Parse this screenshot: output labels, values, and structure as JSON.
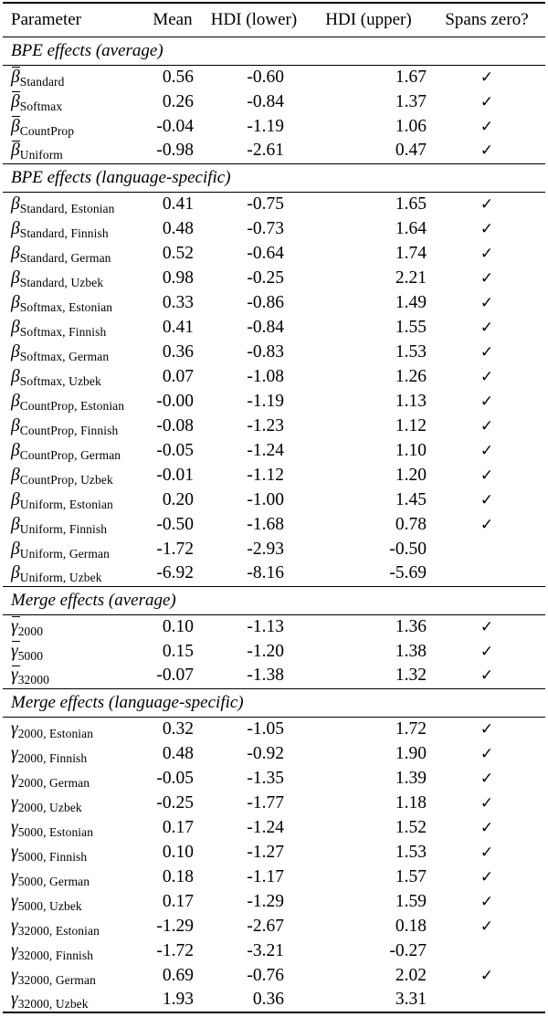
{
  "table": {
    "columns": [
      {
        "label": "Parameter"
      },
      {
        "label": "Mean"
      },
      {
        "label": "HDI (lower)"
      },
      {
        "label": "HDI (upper)"
      },
      {
        "label": "Spans zero?"
      }
    ],
    "check_symbol": "✓",
    "sections": [
      {
        "title": "BPE effects (average)",
        "rows": [
          {
            "param": {
              "sym": "β",
              "bar": true,
              "sub": "Standard"
            },
            "mean": "0.56",
            "hdi_lower": "-0.60",
            "hdi_upper": "1.67",
            "spans_zero": true
          },
          {
            "param": {
              "sym": "β",
              "bar": true,
              "sub": "Softmax"
            },
            "mean": "0.26",
            "hdi_lower": "-0.84",
            "hdi_upper": "1.37",
            "spans_zero": true
          },
          {
            "param": {
              "sym": "β",
              "bar": true,
              "sub": "CountProp"
            },
            "mean": "-0.04",
            "hdi_lower": "-1.19",
            "hdi_upper": "1.06",
            "spans_zero": true
          },
          {
            "param": {
              "sym": "β",
              "bar": true,
              "sub": "Uniform"
            },
            "mean": "-0.98",
            "hdi_lower": "-2.61",
            "hdi_upper": "0.47",
            "spans_zero": true
          }
        ]
      },
      {
        "title": "BPE effects (language-specific)",
        "rows": [
          {
            "param": {
              "sym": "β",
              "bar": false,
              "sub": "Standard, Estonian"
            },
            "mean": "0.41",
            "hdi_lower": "-0.75",
            "hdi_upper": "1.65",
            "spans_zero": true
          },
          {
            "param": {
              "sym": "β",
              "bar": false,
              "sub": "Standard, Finnish"
            },
            "mean": "0.48",
            "hdi_lower": "-0.73",
            "hdi_upper": "1.64",
            "spans_zero": true
          },
          {
            "param": {
              "sym": "β",
              "bar": false,
              "sub": "Standard, German"
            },
            "mean": "0.52",
            "hdi_lower": "-0.64",
            "hdi_upper": "1.74",
            "spans_zero": true
          },
          {
            "param": {
              "sym": "β",
              "bar": false,
              "sub": "Standard, Uzbek"
            },
            "mean": "0.98",
            "hdi_lower": "-0.25",
            "hdi_upper": "2.21",
            "spans_zero": true
          },
          {
            "param": {
              "sym": "β",
              "bar": false,
              "sub": "Softmax, Estonian"
            },
            "mean": "0.33",
            "hdi_lower": "-0.86",
            "hdi_upper": "1.49",
            "spans_zero": true
          },
          {
            "param": {
              "sym": "β",
              "bar": false,
              "sub": "Softmax, Finnish"
            },
            "mean": "0.41",
            "hdi_lower": "-0.84",
            "hdi_upper": "1.55",
            "spans_zero": true
          },
          {
            "param": {
              "sym": "β",
              "bar": false,
              "sub": "Softmax, German"
            },
            "mean": "0.36",
            "hdi_lower": "-0.83",
            "hdi_upper": "1.53",
            "spans_zero": true
          },
          {
            "param": {
              "sym": "β",
              "bar": false,
              "sub": "Softmax, Uzbek"
            },
            "mean": "0.07",
            "hdi_lower": "-1.08",
            "hdi_upper": "1.26",
            "spans_zero": true
          },
          {
            "param": {
              "sym": "β",
              "bar": false,
              "sub": "CountProp, Estonian"
            },
            "mean": "-0.00",
            "hdi_lower": "-1.19",
            "hdi_upper": "1.13",
            "spans_zero": true
          },
          {
            "param": {
              "sym": "β",
              "bar": false,
              "sub": "CountProp, Finnish"
            },
            "mean": "-0.08",
            "hdi_lower": "-1.23",
            "hdi_upper": "1.12",
            "spans_zero": true
          },
          {
            "param": {
              "sym": "β",
              "bar": false,
              "sub": "CountProp, German"
            },
            "mean": "-0.05",
            "hdi_lower": "-1.24",
            "hdi_upper": "1.10",
            "spans_zero": true
          },
          {
            "param": {
              "sym": "β",
              "bar": false,
              "sub": "CountProp, Uzbek"
            },
            "mean": "-0.01",
            "hdi_lower": "-1.12",
            "hdi_upper": "1.20",
            "spans_zero": true
          },
          {
            "param": {
              "sym": "β",
              "bar": false,
              "sub": "Uniform, Estonian"
            },
            "mean": "0.20",
            "hdi_lower": "-1.00",
            "hdi_upper": "1.45",
            "spans_zero": true
          },
          {
            "param": {
              "sym": "β",
              "bar": false,
              "sub": "Uniform, Finnish"
            },
            "mean": "-0.50",
            "hdi_lower": "-1.68",
            "hdi_upper": "0.78",
            "spans_zero": true
          },
          {
            "param": {
              "sym": "β",
              "bar": false,
              "sub": "Uniform, German"
            },
            "mean": "-1.72",
            "hdi_lower": "-2.93",
            "hdi_upper": "-0.50",
            "spans_zero": false
          },
          {
            "param": {
              "sym": "β",
              "bar": false,
              "sub": "Uniform, Uzbek"
            },
            "mean": "-6.92",
            "hdi_lower": "-8.16",
            "hdi_upper": "-5.69",
            "spans_zero": false
          }
        ]
      },
      {
        "title": "Merge effects (average)",
        "rows": [
          {
            "param": {
              "sym": "γ",
              "bar": true,
              "sub": "2000"
            },
            "mean": "0.10",
            "hdi_lower": "-1.13",
            "hdi_upper": "1.36",
            "spans_zero": true
          },
          {
            "param": {
              "sym": "γ",
              "bar": true,
              "sub": "5000"
            },
            "mean": "0.15",
            "hdi_lower": "-1.20",
            "hdi_upper": "1.38",
            "spans_zero": true
          },
          {
            "param": {
              "sym": "γ",
              "bar": true,
              "sub": "32000"
            },
            "mean": "-0.07",
            "hdi_lower": "-1.38",
            "hdi_upper": "1.32",
            "spans_zero": true
          }
        ]
      },
      {
        "title": "Merge effects (language-specific)",
        "rows": [
          {
            "param": {
              "sym": "γ",
              "bar": false,
              "sub": "2000, Estonian"
            },
            "mean": "0.32",
            "hdi_lower": "-1.05",
            "hdi_upper": "1.72",
            "spans_zero": true
          },
          {
            "param": {
              "sym": "γ",
              "bar": false,
              "sub": "2000, Finnish"
            },
            "mean": "0.48",
            "hdi_lower": "-0.92",
            "hdi_upper": "1.90",
            "spans_zero": true
          },
          {
            "param": {
              "sym": "γ",
              "bar": false,
              "sub": "2000, German"
            },
            "mean": "-0.05",
            "hdi_lower": "-1.35",
            "hdi_upper": "1.39",
            "spans_zero": true
          },
          {
            "param": {
              "sym": "γ",
              "bar": false,
              "sub": "2000, Uzbek"
            },
            "mean": "-0.25",
            "hdi_lower": "-1.77",
            "hdi_upper": "1.18",
            "spans_zero": true
          },
          {
            "param": {
              "sym": "γ",
              "bar": false,
              "sub": "5000, Estonian"
            },
            "mean": "0.17",
            "hdi_lower": "-1.24",
            "hdi_upper": "1.52",
            "spans_zero": true
          },
          {
            "param": {
              "sym": "γ",
              "bar": false,
              "sub": "5000, Finnish"
            },
            "mean": "0.10",
            "hdi_lower": "-1.27",
            "hdi_upper": "1.53",
            "spans_zero": true
          },
          {
            "param": {
              "sym": "γ",
              "bar": false,
              "sub": "5000, German"
            },
            "mean": "0.18",
            "hdi_lower": "-1.17",
            "hdi_upper": "1.57",
            "spans_zero": true
          },
          {
            "param": {
              "sym": "γ",
              "bar": false,
              "sub": "5000, Uzbek"
            },
            "mean": "0.17",
            "hdi_lower": "-1.29",
            "hdi_upper": "1.59",
            "spans_zero": true
          },
          {
            "param": {
              "sym": "γ",
              "bar": false,
              "sub": "32000, Estonian"
            },
            "mean": "-1.29",
            "hdi_lower": "-2.67",
            "hdi_upper": "0.18",
            "spans_zero": true
          },
          {
            "param": {
              "sym": "γ",
              "bar": false,
              "sub": "32000, Finnish"
            },
            "mean": "-1.72",
            "hdi_lower": "-3.21",
            "hdi_upper": "-0.27",
            "spans_zero": false
          },
          {
            "param": {
              "sym": "γ",
              "bar": false,
              "sub": "32000, German"
            },
            "mean": "0.69",
            "hdi_lower": "-0.76",
            "hdi_upper": "2.02",
            "spans_zero": true
          },
          {
            "param": {
              "sym": "γ",
              "bar": false,
              "sub": "32000, Uzbek"
            },
            "mean": "1.93",
            "hdi_lower": "0.36",
            "hdi_upper": "3.31",
            "spans_zero": false
          }
        ]
      }
    ]
  }
}
